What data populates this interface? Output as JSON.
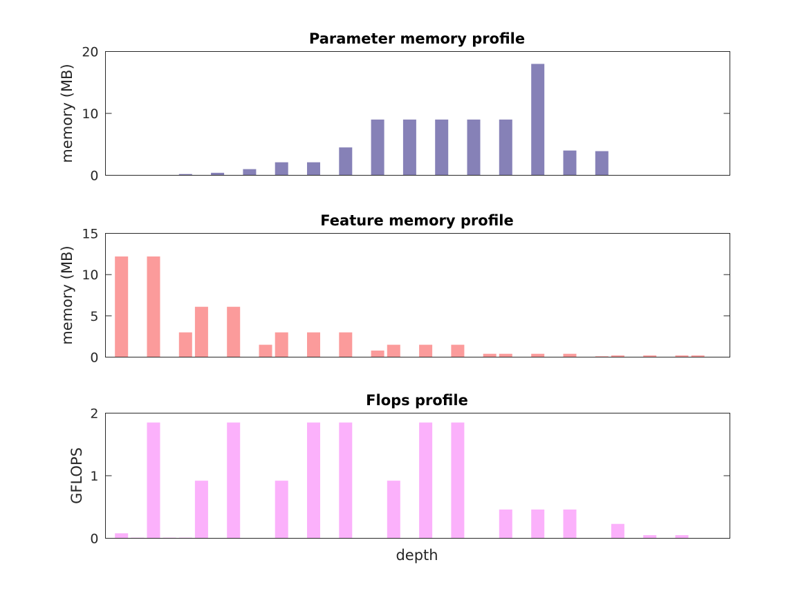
{
  "chart_data": [
    {
      "type": "bar",
      "title": "Parameter memory profile",
      "xlabel": "",
      "ylabel": "memory (MB)",
      "ylim": [
        0,
        20
      ],
      "yticks": [
        "0",
        "10",
        "20"
      ],
      "xlim": [
        0,
        39
      ],
      "grid": false,
      "color": "#8681b7",
      "x": [
        3,
        5,
        7,
        9,
        11,
        13,
        15,
        17,
        19,
        21,
        23,
        25,
        27,
        29,
        31
      ],
      "values": [
        0.0,
        0.2,
        0.4,
        1.0,
        2.1,
        2.1,
        4.5,
        9.0,
        9.0,
        9.0,
        9.0,
        9.0,
        18.0,
        4.0,
        3.9
      ]
    },
    {
      "type": "bar",
      "title": "Feature memory profile",
      "xlabel": "",
      "ylabel": "memory (MB)",
      "ylim": [
        0,
        15
      ],
      "yticks": [
        "0",
        "5",
        "10",
        "15"
      ],
      "xlim": [
        0,
        39
      ],
      "grid": false,
      "color": "#fb9b9b",
      "x": [
        1,
        3,
        5,
        6,
        8,
        10,
        11,
        13,
        15,
        17,
        18,
        20,
        22,
        24,
        25,
        27,
        29,
        31,
        32,
        34,
        36,
        37
      ],
      "values": [
        12.2,
        12.2,
        3.0,
        6.1,
        6.1,
        1.5,
        3.0,
        3.0,
        3.0,
        0.8,
        1.5,
        1.5,
        1.5,
        0.4,
        0.4,
        0.4,
        0.4,
        0.1,
        0.2,
        0.2,
        0.2,
        0.2
      ]
    },
    {
      "type": "bar",
      "title": "Flops profile",
      "xlabel": "depth",
      "ylabel": "GFLOPS",
      "ylim": [
        0,
        2
      ],
      "yticks": [
        "0",
        "1",
        "2"
      ],
      "xlim": [
        0,
        39
      ],
      "grid": false,
      "color": "#fbb1fb",
      "x": [
        1,
        2,
        3,
        4,
        5,
        6,
        8,
        11,
        13,
        15,
        18,
        20,
        22,
        25,
        27,
        29,
        32,
        34,
        36
      ],
      "values": [
        0.08,
        0.01,
        1.85,
        0.01,
        0.01,
        0.92,
        1.85,
        0.92,
        1.85,
        1.85,
        0.92,
        1.85,
        1.85,
        0.46,
        0.46,
        0.46,
        0.23,
        0.05,
        0.05
      ]
    }
  ]
}
